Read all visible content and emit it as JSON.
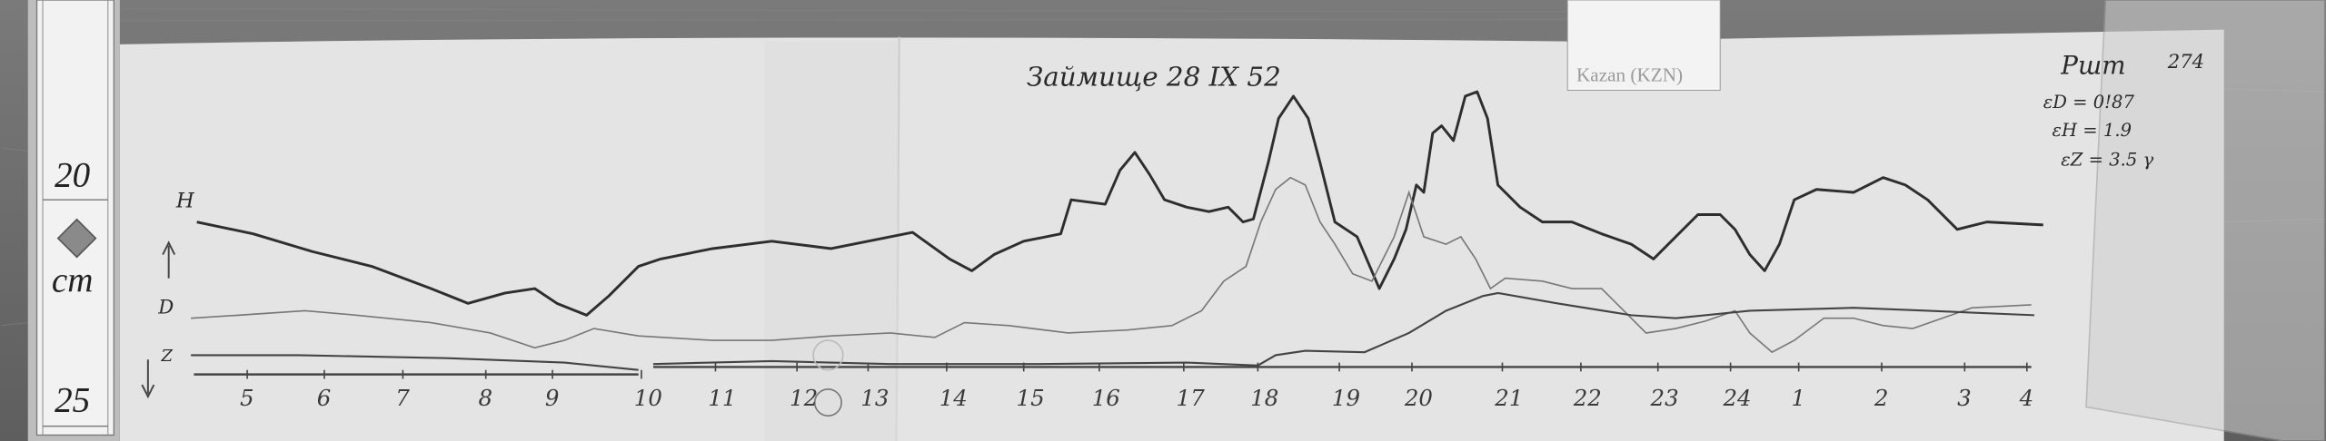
{
  "title_handwritten": "Займище 28 IX 52",
  "station_card": "Kazan (KZN)",
  "ruler": {
    "top": "20",
    "unit": "cm",
    "bottom": "25"
  },
  "curve_labels": {
    "h": "H",
    "d": "D",
    "z": "Z"
  },
  "annotations": {
    "header": "Ршт",
    "number": "274",
    "eps_d": "εD = 0!87",
    "eps_h": "εH = 1.9",
    "eps_z": "εZ = 3.5 γ"
  },
  "hours": [
    "5",
    "6",
    "7",
    "8",
    "9",
    "10",
    "11",
    "12",
    "13",
    "14",
    "15",
    "16",
    "17",
    "18",
    "19",
    "20",
    "21",
    "22",
    "23",
    "24",
    "1",
    "2",
    "3",
    "4"
  ],
  "colors": {
    "paper": "#e6e6e6",
    "wood": "#6e6e6e",
    "ink": "#333333"
  }
}
